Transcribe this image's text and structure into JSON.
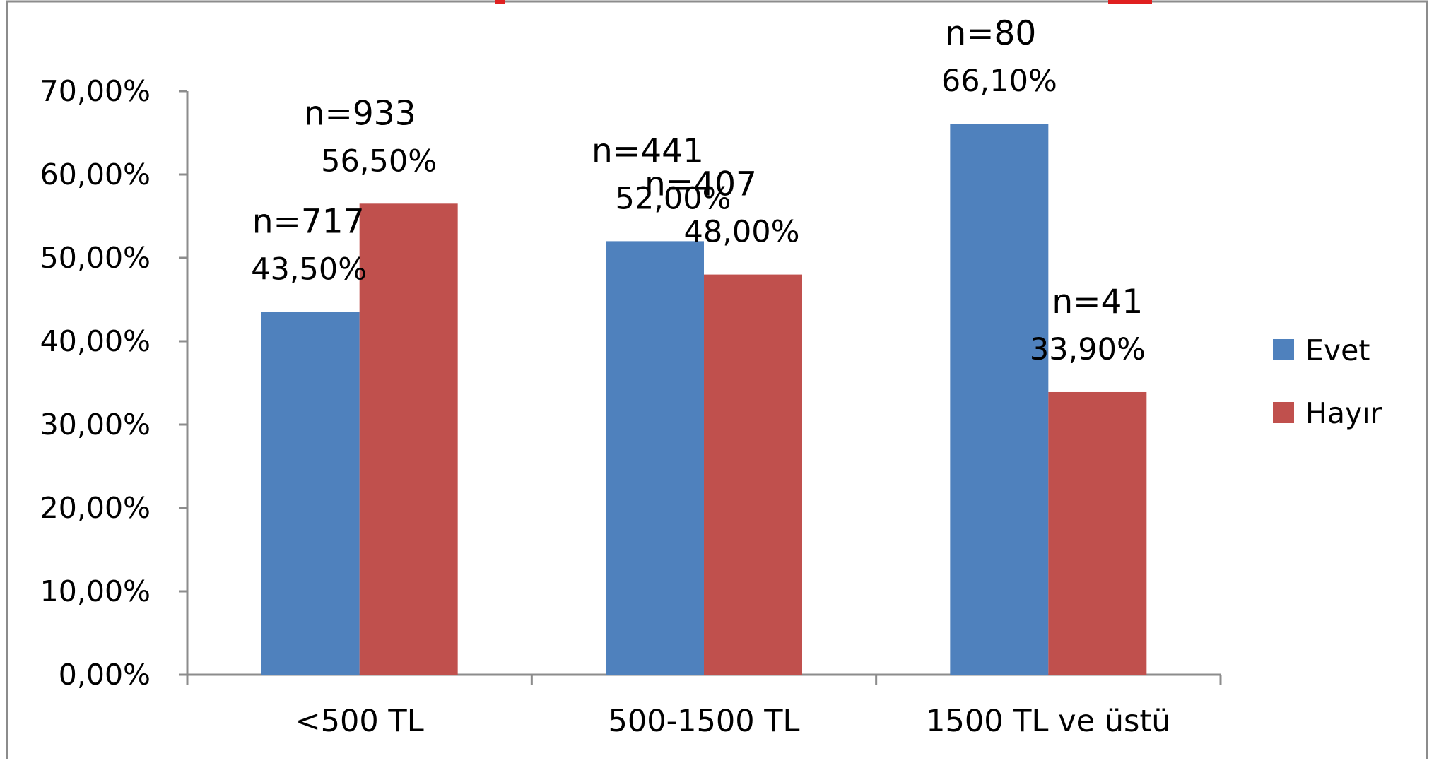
{
  "chart_data": {
    "type": "bar",
    "categories": [
      "<500 TL",
      "500-1500 TL",
      "1500 TL ve üstü"
    ],
    "series": [
      {
        "name": "Evet",
        "color": "#4f81bd",
        "values": [
          43.5,
          52.0,
          66.1
        ],
        "value_labels": [
          "43,50%",
          "52,00%",
          "66,10%"
        ],
        "n_labels": [
          "n=717",
          "n=441",
          "n=80"
        ]
      },
      {
        "name": "Hayır",
        "color": "#c0504d",
        "values": [
          56.5,
          48.0,
          33.9
        ],
        "value_labels": [
          "56,50%",
          "48,00%",
          "33,90%"
        ],
        "n_labels": [
          "n=933",
          "n=407",
          "n=41"
        ]
      }
    ],
    "ylim": [
      0,
      70
    ],
    "yticks": [
      0,
      10,
      20,
      30,
      40,
      50,
      60,
      70
    ],
    "ytick_labels": [
      "0,00%",
      "10,00%",
      "20,00%",
      "30,00%",
      "40,00%",
      "50,00%",
      "60,00%",
      "70,00%"
    ],
    "grid": false,
    "legend_position": "right",
    "title": "",
    "xlabel": "",
    "ylabel": ""
  }
}
